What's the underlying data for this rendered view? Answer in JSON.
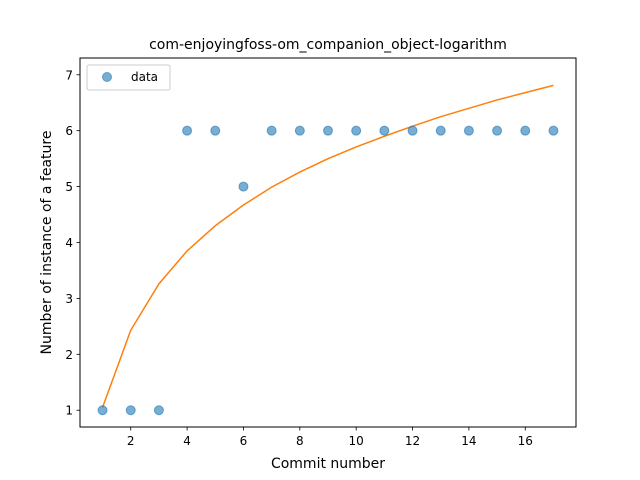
{
  "chart_data": {
    "type": "scatter",
    "title": "com-enjoyingfoss-om_companion_object-logarithm",
    "xlabel": "Commit number",
    "ylabel": "Number of instance of a feature",
    "xlim": [
      0.2,
      17.8
    ],
    "ylim": [
      0.7,
      7.3
    ],
    "xticks": [
      2,
      4,
      6,
      8,
      10,
      12,
      14,
      16
    ],
    "yticks": [
      1,
      2,
      3,
      4,
      5,
      6,
      7
    ],
    "grid": false,
    "legend_position": "top-left",
    "series": [
      {
        "name": "data",
        "kind": "scatter",
        "color": "#1f77b4",
        "x": [
          1,
          2,
          3,
          4,
          5,
          6,
          7,
          8,
          9,
          10,
          11,
          12,
          13,
          14,
          15,
          16,
          17
        ],
        "y": [
          1,
          1,
          1,
          6,
          6,
          5,
          6,
          6,
          6,
          6,
          6,
          6,
          6,
          6,
          6,
          6,
          6
        ]
      },
      {
        "kind": "line",
        "color": "#ff7f0e",
        "x": [
          1,
          2,
          3,
          4,
          5,
          6,
          7,
          8,
          9,
          10,
          11,
          12,
          13,
          14,
          15,
          16,
          17
        ],
        "y": [
          1.05,
          2.43,
          3.26,
          3.85,
          4.3,
          4.67,
          4.99,
          5.26,
          5.5,
          5.71,
          5.9,
          6.08,
          6.25,
          6.4,
          6.55,
          6.68,
          6.81
        ]
      }
    ]
  }
}
